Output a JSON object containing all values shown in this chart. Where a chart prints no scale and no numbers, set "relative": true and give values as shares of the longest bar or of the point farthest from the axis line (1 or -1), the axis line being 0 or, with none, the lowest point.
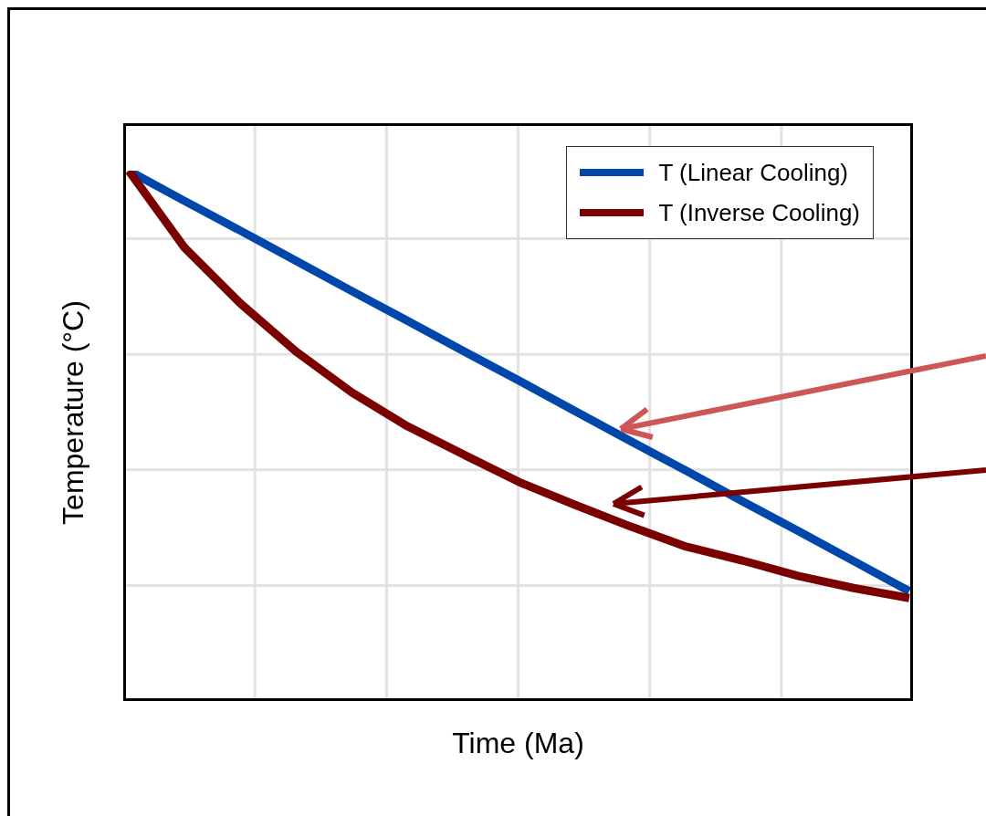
{
  "chart_data": {
    "type": "line",
    "relative": true,
    "xlabel": "Time (Ma)",
    "ylabel": "Temperature (°C)",
    "categories": [
      null,
      null,
      null,
      null,
      null,
      null,
      null,
      null,
      null,
      null,
      null,
      null,
      null,
      null,
      null
    ],
    "series": [
      {
        "name": "T (Linear Cooling)",
        "color": "#0047ab",
        "values": [
          1,
          0.943,
          0.887,
          0.83,
          0.773,
          0.717,
          0.66,
          0.604,
          0.547,
          0.49,
          0.434,
          0.377,
          0.321,
          0.264,
          0.207
        ]
      },
      {
        "name": "T (Inverse Cooling)",
        "color": "#7b0000",
        "values": [
          1,
          0.855,
          0.75,
          0.659,
          0.582,
          0.518,
          0.465,
          0.413,
          0.37,
          0.329,
          0.291,
          0.265,
          0.236,
          0.213,
          0.194
        ]
      }
    ],
    "grid": true,
    "legend": "top right",
    "tick_labels": false,
    "marker": "none",
    "line_style": "solid"
  }
}
